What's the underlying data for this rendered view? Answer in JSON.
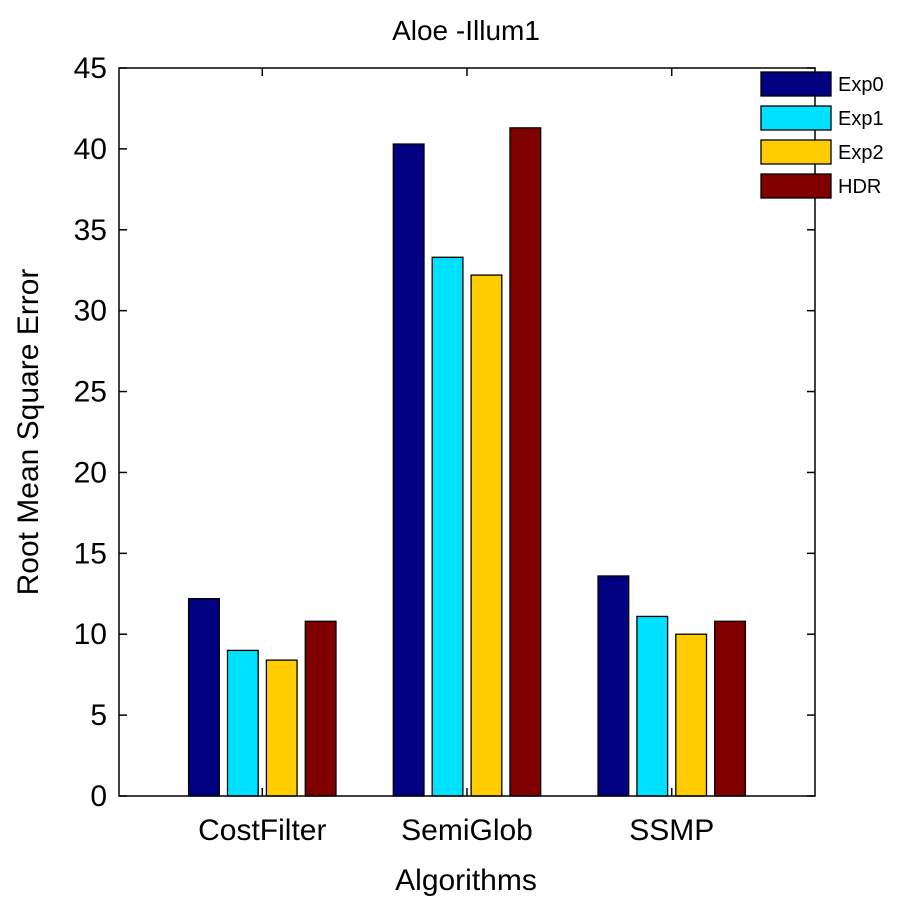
{
  "chart_data": {
    "type": "bar",
    "title": "Aloe -Illum1",
    "xlabel": "Algorithms",
    "ylabel": "Root Mean Square Error",
    "categories": [
      "CostFilter",
      "SemiGlob",
      "SSMP"
    ],
    "series": [
      {
        "name": "Exp0",
        "color": "#000080",
        "values": [
          12.2,
          40.3,
          13.6
        ]
      },
      {
        "name": "Exp1",
        "color": "#00E0FF",
        "values": [
          9.0,
          33.3,
          11.1
        ]
      },
      {
        "name": "Exp2",
        "color": "#FFCC00",
        "values": [
          8.4,
          32.2,
          10.0
        ]
      },
      {
        "name": "HDR",
        "color": "#800000",
        "values": [
          10.8,
          41.3,
          10.8
        ]
      }
    ],
    "xlim": [
      0.3,
      3.7
    ],
    "ylim": [
      0,
      45
    ],
    "yticks": [
      0,
      5,
      10,
      15,
      20,
      25,
      30,
      35,
      40,
      45
    ],
    "grid": false,
    "legend_position": "top-right"
  }
}
